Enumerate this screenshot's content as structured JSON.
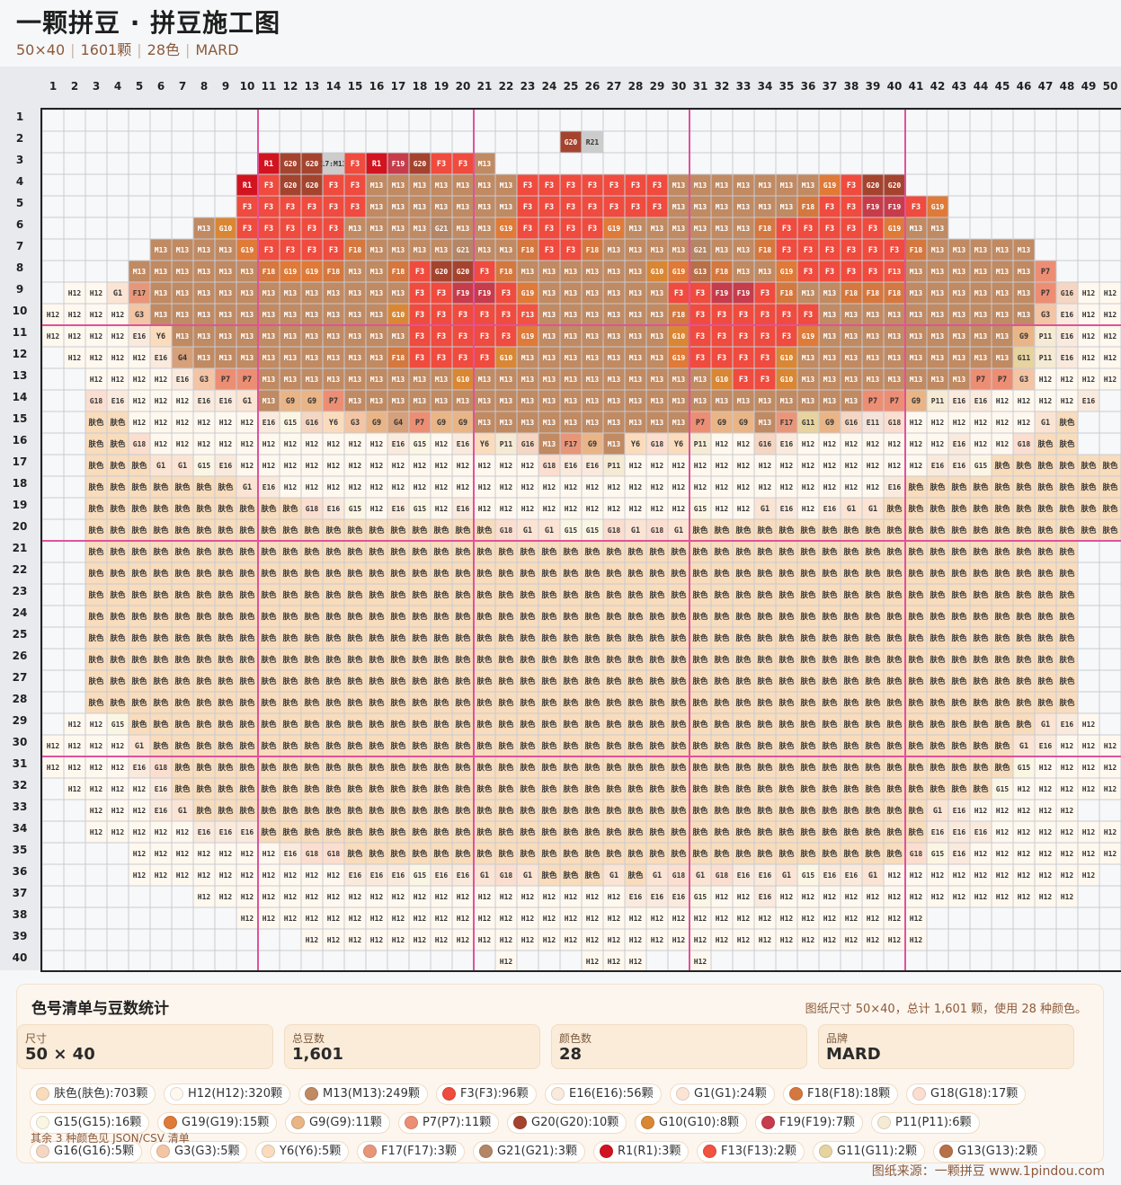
{
  "header": {
    "title": "一颗拼豆 · 拼豆施工图",
    "meta": [
      "50×40",
      "1601颗",
      "28色",
      "MARD"
    ]
  },
  "grid": {
    "cols": 50,
    "rows": 40,
    "colors": {
      "肤色": "#f8dcbc",
      "H12": "#fff8ef",
      "M13": "#c08a63",
      "F3": "#ef4b3e",
      "E16": "#faeadd",
      "G1": "#fbe4d4",
      "F18": "#d4783f",
      "G18": "#fbdecf",
      "G15": "#fbf6e3",
      "G19": "#df7a38",
      "G9": "#e9b587",
      "P7": "#ec8e74",
      "G20": "#a4442f",
      "G10": "#d98734",
      "F19": "#c63c4b",
      "P11": "#f5ead4",
      "G16": "#f5d6c2",
      "G3": "#f3c5a5",
      "Y6": "#fadcbd",
      "F17": "#e8967a",
      "G21": "#b28666",
      "R1": "#d1141f",
      "F13": "#f0533f",
      "G11": "#e6d39f",
      "G13": "#b77048",
      "E11": "#f3e3db",
      "G4": "#d6a07b",
      "F23": "#f27758"
    },
    "rows_data": [
      "",
      "24:G20 R21",
      "10:R1 G20 G20 17:M13 F3 R1 F19 G20 F3 F3 M13",
      "9:R1 F3 G20 G20 F3 F3 M13 M13 M13 M13 M13 M13 M13 F3 F3 F3 F3 F3 F3 F3 M13 M13 M13 M13 M13 M13 M13 G19 F3 G20 G20",
      "9:F3 F3 F3 F3 F3 F3 M13 M13 M13 M13 M13 M13 M13 F3 F3 F3 F3 F3 F3 F3 M13 M13 M13 M13 M13 M13 F18 F3 F3 F19 F19 F3 G19",
      "7:M13 G10 F3 F3 F3 F3 F3 M13 M13 M13 M13 G21 M13 M13 G19 F3 F3 F3 F3 G19 M13 M13 M13 M13 M13 M13 F18 F3 F3 F3 F3 F3 G19 M13 M13",
      "5:M13 M13 M13 M13 G19 F3 F3 F3 F3 F18 M13 M13 M13 M13 G21 M13 M13 F18 F3 F3 F18 M13 M13 M13 M13 G21 M13 M13 F18 F3 F3 F3 F3 F3 F3 F18 M13 M13 M13 M13 M13",
      "4:M13 M13 M13 M13 M13 M13 F18 G19 G19 F18 M13 M13 F18 F3 G20 G20 F3 F18 M13 M13 M13 M13 M13 M13 G10 G19 G13 F18 M13 M13 G19 F3 F3 F3 F3 F13 M13 M13 M13 M13 M13 M13 P7",
      "1:H12 H12 G1 F17 M13 M13 M13 M13 M13 M13 M13 M13 M13 M13 M13 M13 F3 F3 F19 F19 F3 G19 M13 M13 M13 M13 M13 M13 F3 F3 F19 F19 F3 F18 M13 M13 F18 F18 F18 M13 M13 M13 M13 M13 M13 P7 G16 H12 H12",
      "0:H12 H12 H12 H12 G3 M13 M13 M13 M13 M13 M13 M13 M13 M13 M13 M13 G10 F3 F3 F3 F3 F3 F13 M13 M13 M13 M13 M13 M13 F18 F3 F3 F3 F3 F3 F3 M13 M13 M13 M13 M13 M13 M13 M13 M13 M13 G3 E16 H12 H12 H12",
      "0:H12 H12 H12 H12 E16 Y6 M13 M13 M13 M13 M13 M13 M13 M13 M13 M13 M13 F3 F3 F3 F3 F3 G19 M13 M13 M13 M13 M13 M13 G10 F3 F3 F3 F3 F3 G19 M13 M13 M13 M13 M13 M13 M13 M13 M13 G9 P11 E16 H12 H12 H12",
      "1:H12 H12 H12 H12 E16 G4 M13 M13 M13 M13 M13 M13 M13 M13 M13 F18 F3 F3 F3 F3 G10 M13 M13 M13 M13 M13 M13 M13 G19 F3 F3 F3 F3 G10 M13 M13 M13 M13 M13 M13 M13 M13 M13 M13 G11 P11 E16 H12 H12 H12",
      "2:H12 H12 H12 H12 E16 G3 P7 P7 M13 M13 M13 M13 M13 M13 M13 M13 M13 G10 M13 M13 M13 M13 M13 M13 M13 M13 M13 M13 M13 G10 F3 F3 G10 M13 M13 M13 M13 M13 M13 M13 M13 P7 P7 G3 H12 H12 H12 H12 H12 H12",
      "2:G18 E16 H12 H12 H12 E16 E16 G1 M13 G9 G9 P7 M13 M13 M13 M13 M13 M13 M13 M13 M13 M13 M13 M13 M13 M13 M13 M13 M13 M13 M13 M13 M13 M13 M13 M13 P7 P7 G9 P11 E16 E16 H12 H12 H12 H12 E16",
      "2:肤色 肤色 H12 H12 H12 H12 H12 H12 E16 G15 G16 Y6 G3 G9 G4 P7 G9 G9 M13 M13 M13 M13 M13 M13 M13 M13 M13 M13 P7 G9 G9 M13 F17 G11 G9 G16 E11 G18 H12 H12 H12 H12 H12 H12 G1 肤色",
      "2:肤色 肤色 G18 H12 H12 H12 H12 H12 H12 H12 H12 H12 H12 H12 E16 G15 H12 E16 Y6 P11 G16 M13 F17 G9 M13 Y6 G18 Y6 P11 H12 H12 G16 E16 H12 H12 H12 H12 H12 H12 H12 E16 H12 H12 G18 肤色 肤色",
      "2:肤色 肤色 肤色 G1 G1 G15 E16 H12 H12 H12 H12 H12 H12 H12 H12 H12 H12 H12 H12 H12 H12 G18 E16 E16 P11 H12 H12 H12 H12 H12 H12 H12 H12 H12 H12 H12 H12 H12 H12 E16 E16 G15 肤色 肤色 肤色 肤色 肤色 肤色",
      "2:肤色 肤色 肤色 肤色 肤色 肤色 肤色 G1 E16 H12 H12 H12 H12 H12 H12 H12 H12 H12 H12 H12 H12 H12 H12 H12 H12 H12 H12 H12 H12 H12 H12 H12 H12 H12 H12 H12 H12 E16 肤色 肤色 肤色 肤色 肤色 肤色 肤色 肤色 肤色 肤色",
      "2:肤色 肤色 肤色 肤色 肤色 肤色 肤色 肤色 肤色 肤色 G18 E16 G15 H12 E16 G15 H12 E16 H12 H12 H12 H12 H12 H12 H12 H12 H12 H12 G15 H12 H12 G1 E16 H12 E16 G1 G1 肤色 肤色 肤色 肤色 肤色 肤色 肤色 肤色 肤色 肤色 肤色",
      "2:肤色 肤色 肤色 肤色 肤色 肤色 肤色 肤色 肤色 肤色 肤色 肤色 肤色 肤色 肤色 肤色 肤色 肤色 肤色 G18 G1 G1 G15 G15 G18 G1 G18 G1 肤色 肤色 肤色 肤色 肤色 肤色 肤色 肤色 肤色 肤色 肤色 肤色 肤色 肤色 肤色 肤色 肤色 肤色 肤色 肤色",
      "2:肤色*46",
      "2:肤色*46",
      "2:肤色*46",
      "2:肤色*46",
      "2:肤色*46",
      "2:肤色*46",
      "2:肤色*46",
      "2:肤色*46",
      "1:H12 H12 G15 肤色*42 G1 E16 H12",
      "0:H12 H12 H12 H12 G1 肤色*40 G1 E16 H12 H12 H12",
      "0:H12 H12 H12 H12 E16 G18 肤色*39 G15 H12 H12 H12 H12",
      "1:H12 H12 H12 H12 E16 肤色*38 G15 H12 H12 H12 H12 H12",
      "2:H12 H12 H12 E16 G1 肤色*34 G1 E16 H12 H12 H12 H12 H12",
      "2:H12 H12 H12 H12 H12 E16 E16 E16 肤色*31 E16 E16 E16 H12 H12 H12 H12 H12 H12",
      "4:H12 H12 H12 H12 H12 H12 H12 E16 G18 G18 肤色*26 G18 G15 E16 H12 H12 H12 H12 H12 H12 H12 H12",
      "4:H12 H12 H12 H12 H12 H12 H12 H12 H12 H12 E16 E16 E16 G15 E16 E16 G1 G18 G1 肤色 肤色 肤色 G1 肤色 G1 G18 G1 G18 E16 E16 G1 G15 E16 E16 G1 H12 H12 H12 H12 H12 H12 H12 H12 H12 H12",
      "7:H12 H12 H12 H12 H12 H12 H12 H12 H12 H12 H12 H12 H12 H12 H12 H12 H12 H12 H12 H12 E16 E16 E16 G15 H12 H12 E16 H12 H12 H12 H12 H12 H12 H12 H12 H12 H12 H12 H12 H12 H12",
      "9:H12 H12 H12 H12 H12 H12 H12 H12 H12 H12 H12 H12 H12 H12 H12 H12 H12 H12 H12 H12 H12 H12 H12 H12 H12 H12 H12 H12 H12 H12 H12 H12",
      "12:H12 H12 H12 H12 H12 H12 H12 H12 H12 H12 H12 H12 H12 H12 H12 H12 H12 H12 H12 H12 H12 H12 H12 H12 H12 H12 H12 H12 H12",
      "21:H12 _ _ _ H12 H12 H12 _ _ H12"
    ]
  },
  "panel": {
    "title": "色号清单与豆数统计",
    "note": "图纸尺寸 50×40，总计 1,601 颗，使用 28 种颜色。",
    "stats": [
      {
        "label": "尺寸",
        "value": "50 × 40"
      },
      {
        "label": "总豆数",
        "value": "1,601"
      },
      {
        "label": "颜色数",
        "value": "28"
      },
      {
        "label": "品牌",
        "value": "MARD"
      }
    ],
    "chips": [
      {
        "text": "肤色(肤色):703颗",
        "color": "#f8dcbc"
      },
      {
        "text": "H12(H12):320颗",
        "color": "#fff8ef"
      },
      {
        "text": "M13(M13):249颗",
        "color": "#c08a63"
      },
      {
        "text": "F3(F3):96颗",
        "color": "#ef4b3e"
      },
      {
        "text": "E16(E16):56颗",
        "color": "#faeadd"
      },
      {
        "text": "G1(G1):24颗",
        "color": "#fbe4d4"
      },
      {
        "text": "F18(F18):18颗",
        "color": "#d4783f"
      },
      {
        "text": "G18(G18):17颗",
        "color": "#fbdecf"
      },
      {
        "text": "G15(G15):16颗",
        "color": "#fbf6e3"
      },
      {
        "text": "G19(G19):15颗",
        "color": "#df7a38"
      },
      {
        "text": "G9(G9):11颗",
        "color": "#e9b587"
      },
      {
        "text": "P7(P7):11颗",
        "color": "#ec8e74"
      },
      {
        "text": "G20(G20):10颗",
        "color": "#a4442f"
      },
      {
        "text": "G10(G10):8颗",
        "color": "#d98734"
      },
      {
        "text": "F19(F19):7颗",
        "color": "#c63c4b"
      },
      {
        "text": "P11(P11):6颗",
        "color": "#f5ead4"
      },
      {
        "text": "G16(G16):5颗",
        "color": "#f5d6c2"
      },
      {
        "text": "G3(G3):5颗",
        "color": "#f3c5a5"
      },
      {
        "text": "Y6(Y6):5颗",
        "color": "#fadcbd"
      },
      {
        "text": "F17(F17):3颗",
        "color": "#e8967a"
      },
      {
        "text": "G21(G21):3颗",
        "color": "#b28666"
      },
      {
        "text": "R1(R1):3颗",
        "color": "#d1141f"
      },
      {
        "text": "F13(F13):2颗",
        "color": "#f0533f"
      },
      {
        "text": "G11(G11):2颗",
        "color": "#e6d39f"
      },
      {
        "text": "G13(G13):2颗",
        "color": "#b77048"
      }
    ],
    "more": "其余 3 种颜色见 JSON/CSV 清单",
    "source": "图纸来源：一颗拼豆 www.1pindou.com"
  }
}
